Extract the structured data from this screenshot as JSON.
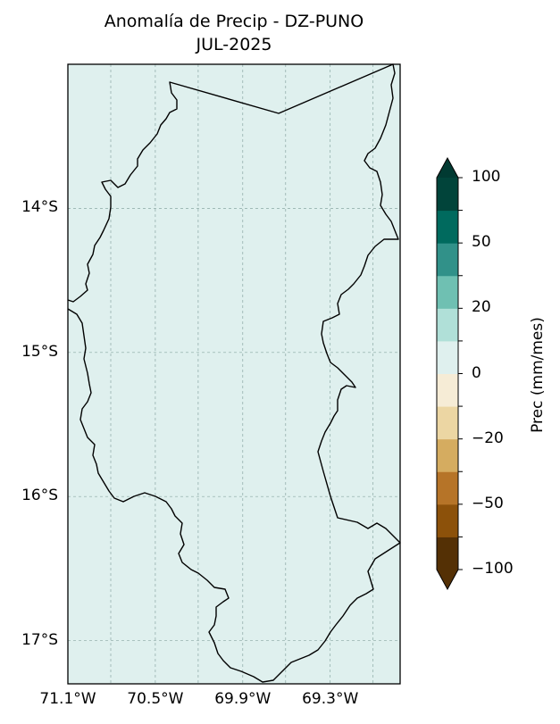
{
  "chart_data": {
    "type": "heatmap",
    "title": "Anomalía de Precip - DZ-PUNO",
    "subtitle": "JUL-2025",
    "x_ticks": [
      "71.1°W",
      "70.5°W",
      "69.9°W",
      "69.3°W"
    ],
    "x_tick_values": [
      -71.1,
      -70.5,
      -69.9,
      -69.3
    ],
    "y_ticks": [
      "14°S",
      "15°S",
      "16°S",
      "17°S"
    ],
    "y_tick_values": [
      -14,
      -15,
      -16,
      -17
    ],
    "xlim": [
      -71.1,
      -68.82
    ],
    "ylim": [
      -17.3,
      -13.0
    ],
    "grid": true,
    "field_color": "#dff0ee",
    "colorbar": {
      "label": "Prec (mm/mes)",
      "tick_labels": [
        "100",
        "50",
        "20",
        "0",
        "−20",
        "−50",
        "−100"
      ],
      "tick_values": [
        100,
        50,
        20,
        0,
        -20,
        -50,
        -100
      ],
      "levels": [
        -100,
        -80,
        -50,
        -30,
        -20,
        -10,
        0,
        10,
        20,
        30,
        50,
        80,
        100
      ],
      "colors": [
        "#543005",
        "#8c510a",
        "#b67428",
        "#d5ac60",
        "#ecd6a3",
        "#f6ecd6",
        "#dff0ee",
        "#b0e0d8",
        "#6fc0b2",
        "#319189",
        "#006a5e",
        "#01443a"
      ],
      "under_color": "#543005",
      "over_color": "#013a32",
      "extend": "both"
    }
  }
}
